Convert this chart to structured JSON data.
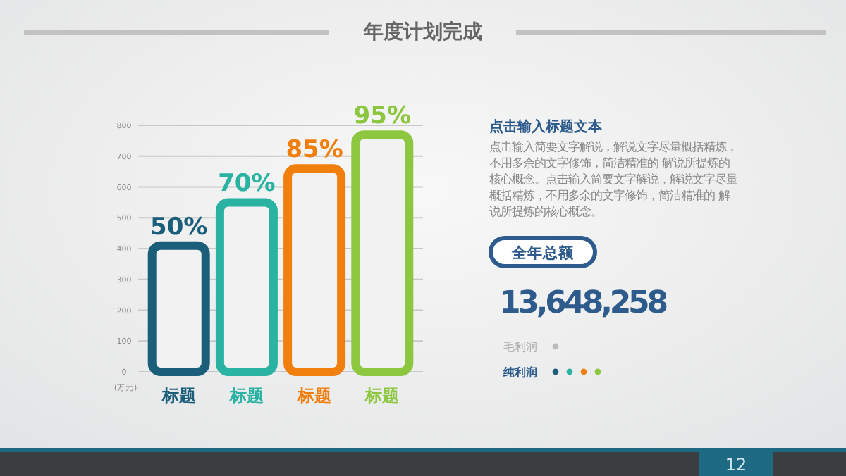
{
  "chart_data": {
    "type": "bar",
    "title": "年度计划完成",
    "ylabel": "(万元)",
    "categories": [
      "标题",
      "标题",
      "标题",
      "标题"
    ],
    "values": [
      410,
      550,
      660,
      770
    ],
    "colors": [
      "#1a5e7a",
      "#2ab3a3",
      "#f07f0e",
      "#8dc63f"
    ],
    "ylim": [
      0,
      800
    ],
    "yticks": [
      0,
      100,
      200,
      300,
      400,
      500,
      600,
      700,
      800
    ],
    "grid": "y",
    "annotations": [
      "50%",
      "70%",
      "85%",
      "95%",
      "点击输入标题文本",
      "点击输入简要文字解说，解说文字尽量概括精炼，不用多余的文字修饰，简洁精准的 解说所提炼的核心概念。点击输入简要文字解说，解说文字尽量概括精炼，不用多余的文字修饰，简洁精准的 解说所提炼的核心概念。",
      "全年总额",
      "13,648,258",
      "毛利润",
      "纯利润",
      "12"
    ]
  }
}
